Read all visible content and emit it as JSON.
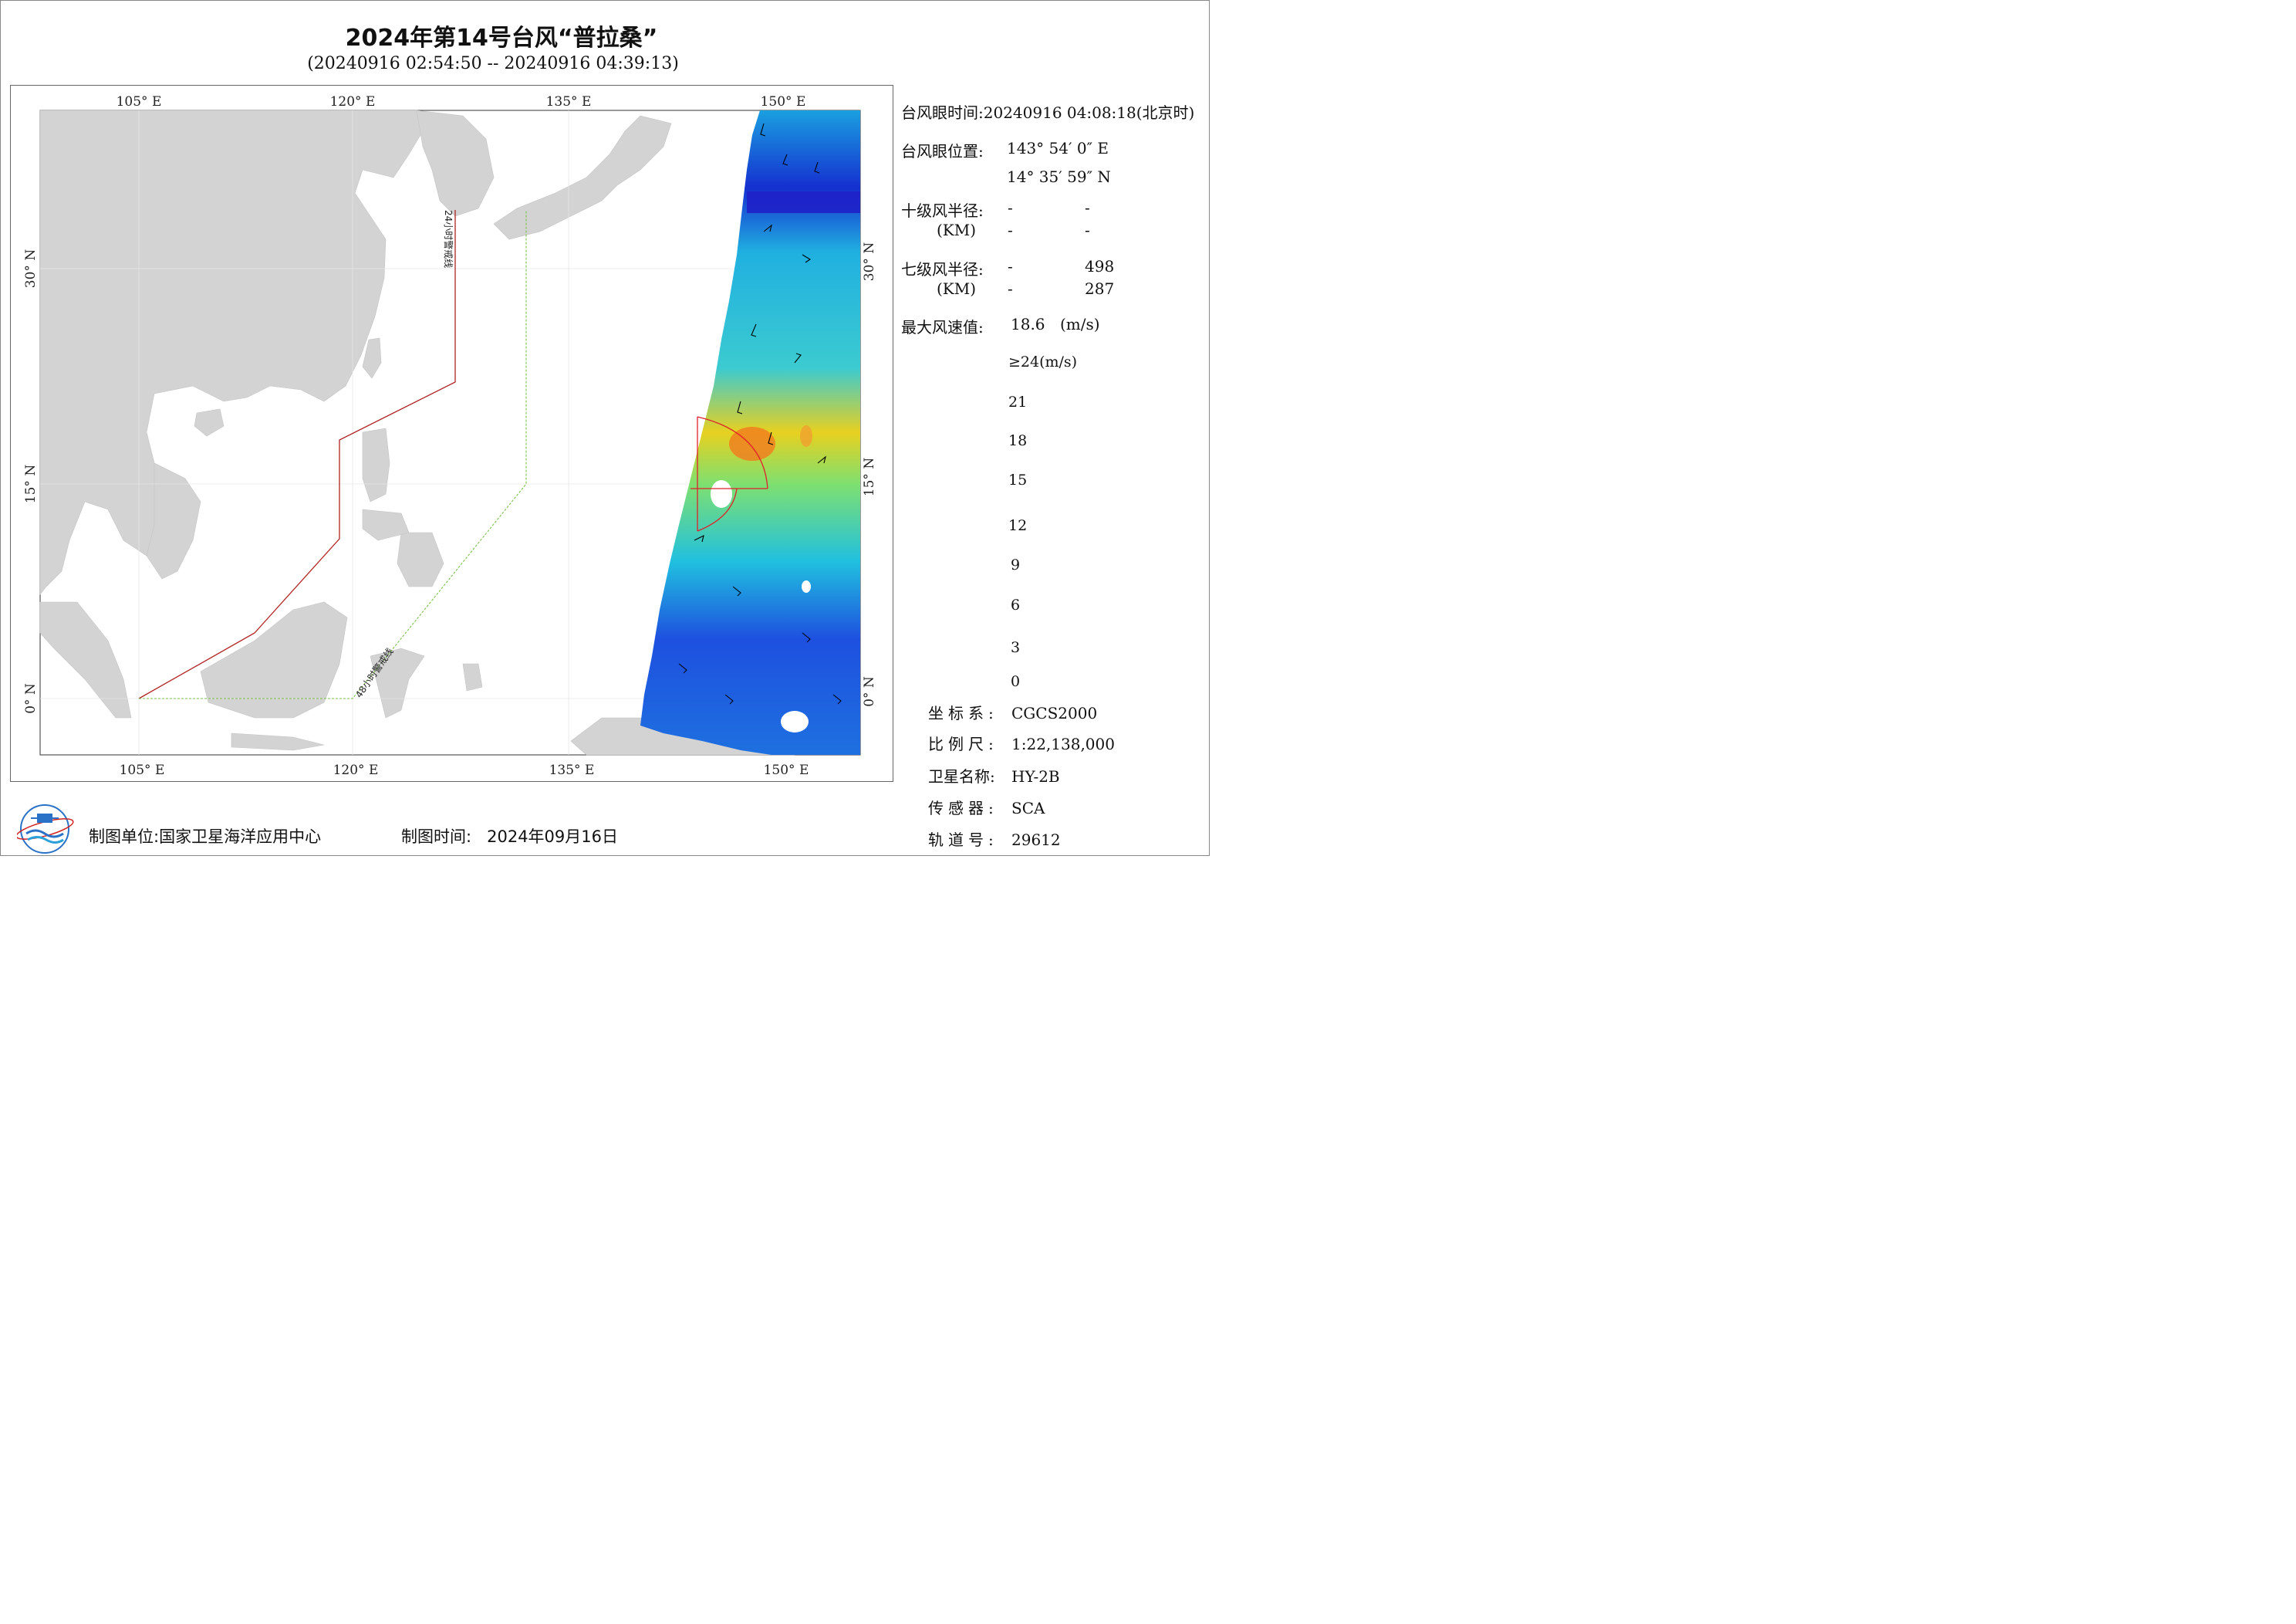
{
  "title": "2024年第14号台风“普拉桑”",
  "subtitle": "(20240916 02:54:50 -- 20240916 04:39:13)",
  "map": {
    "lon_ticks_top": [
      "105° E",
      "120° E",
      "135° E",
      "150° E"
    ],
    "lon_ticks_bottom": [
      "105° E",
      "120° E",
      "135° E",
      "150° E"
    ],
    "lat_ticks_left": [
      "30° N",
      "15° N",
      "0° N"
    ],
    "lat_ticks_right": [
      "30° N",
      "15° N",
      "0° N"
    ],
    "line_24h_label": "24小时警戒线",
    "line_48h_label": "48小时警戒线",
    "colors": {
      "land": "#d3d3d3",
      "line_24h": "#b22222",
      "line_48h": "#7ac24a",
      "eye_marker": "#e0202a"
    }
  },
  "info": {
    "eye_time_label": "台风眼时间:",
    "eye_time_value": "20240916 04:08:18(北京时)",
    "eye_pos_label": "台风眼位置:",
    "eye_lon": "143° 54′ 0″ E",
    "eye_lat": "14° 35′ 59″ N",
    "r10_label": "十级风半径:",
    "r10_unit": "(KM)",
    "r10_v1": "-",
    "r10_v2": "-",
    "r10_v3": "-",
    "r10_v4": "-",
    "r7_label": "七级风半径:",
    "r7_unit": "(KM)",
    "r7_v1": "-",
    "r7_v2": "498",
    "r7_v3": "-",
    "r7_v4": "287",
    "max_label": "最大风速值:",
    "max_value": "18.6",
    "max_unit": "(m/s)"
  },
  "colorbar": {
    "top_label": "≥24(m/s)",
    "labels": [
      "21",
      "18",
      "15",
      "12",
      "9",
      "6",
      "3",
      "0"
    ]
  },
  "meta": {
    "crs_label": "坐标系:",
    "crs_value": "CGCS2000",
    "scale_label": "比例尺:",
    "scale_value": "1:22,138,000",
    "sat_label": "卫星名称:",
    "sat_value": "HY-2B",
    "sensor_label": "传感器:",
    "sensor_value": "SCA",
    "orbit_label": "轨道号:",
    "orbit_value": "29612"
  },
  "footer": {
    "producer_label": "制图单位:",
    "producer_value": "国家卫星海洋应用中心",
    "date_label": "制图时间:",
    "date_value": "2024年09月16日"
  }
}
